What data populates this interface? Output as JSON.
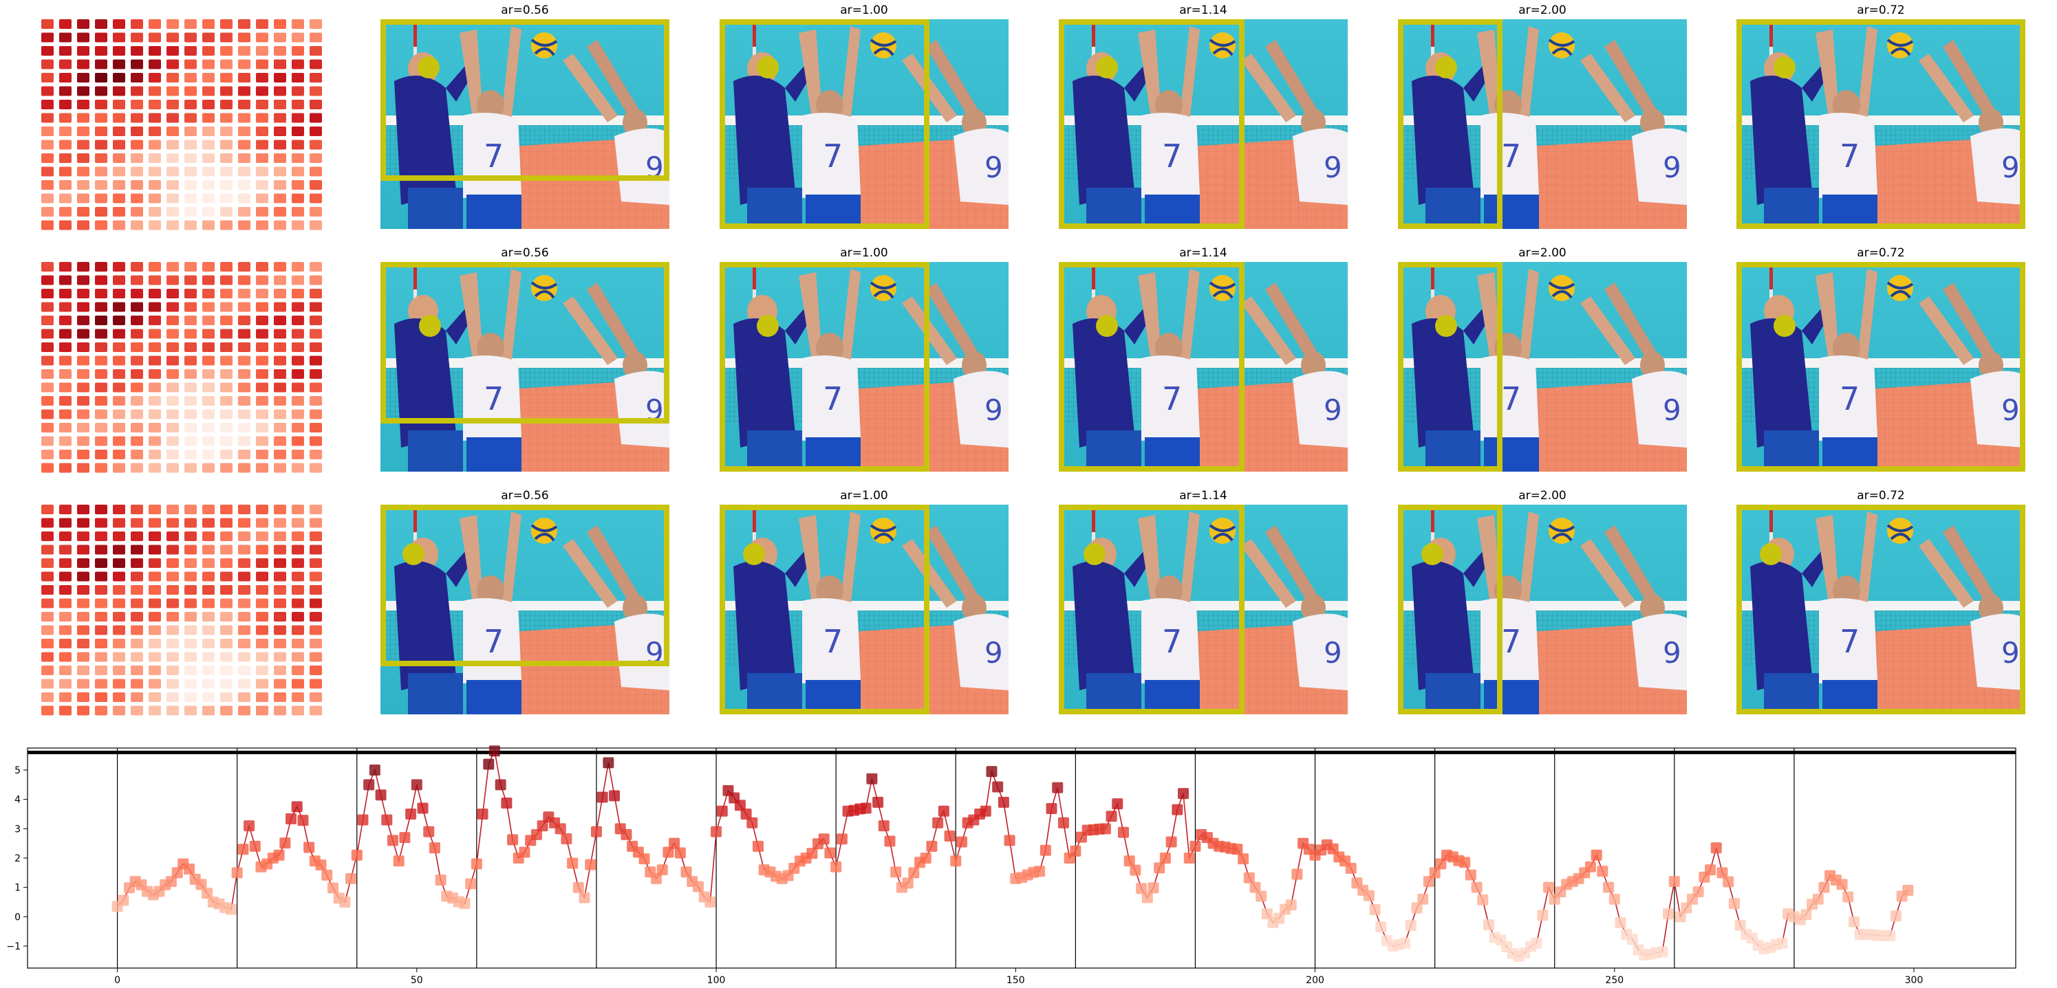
{
  "chart_data": [
    {
      "type": "heatmap",
      "description_of_panels": "rows",
      "rows": 3,
      "grid": [
        16,
        16
      ]
    },
    {
      "type": "image-grid",
      "rows": 3,
      "panel_titles": [
        "ar=0.56",
        "ar=1.00",
        "ar=1.14",
        "ar=2.00",
        "ar=0.72"
      ],
      "crop_box_color": "#c8c40e",
      "marker_color": "#c8c40e"
    },
    {
      "type": "line",
      "title": "",
      "xlabel": "",
      "ylabel": "",
      "xlim": [
        -15,
        317
      ],
      "ylim": [
        -1.75,
        5.75
      ],
      "xticks": [
        0,
        50,
        100,
        150,
        200,
        250,
        300
      ],
      "yticks": [
        -1,
        0,
        1,
        2,
        3,
        4,
        5
      ],
      "vlines": [
        0,
        20,
        40,
        60,
        80,
        100,
        120,
        140,
        160,
        180,
        200,
        220,
        240,
        260,
        280
      ],
      "hline": 5.6,
      "line_color": "#c0202a",
      "keypoints": [
        [
          0,
          0.35
        ],
        [
          3,
          1.2
        ],
        [
          6,
          0.75
        ],
        [
          9,
          1.2
        ],
        [
          10,
          1.5
        ],
        [
          11,
          1.8
        ],
        [
          14,
          1.1
        ],
        [
          16,
          0.5
        ],
        [
          19,
          0.25
        ],
        [
          20,
          1.5
        ],
        [
          22,
          3.1
        ],
        [
          24,
          1.7
        ],
        [
          27,
          2.1
        ],
        [
          30,
          3.75
        ],
        [
          33,
          1.9
        ],
        [
          38,
          0.5
        ],
        [
          40,
          2.1
        ],
        [
          42,
          4.5
        ],
        [
          43,
          5.0
        ],
        [
          45,
          3.3
        ],
        [
          47,
          1.9
        ],
        [
          49,
          3.5
        ],
        [
          50,
          4.5
        ],
        [
          52,
          2.9
        ],
        [
          55,
          0.7
        ],
        [
          58,
          0.45
        ],
        [
          60,
          1.8
        ],
        [
          62,
          5.2
        ],
        [
          63,
          5.65
        ],
        [
          64,
          4.5
        ],
        [
          67,
          2.0
        ],
        [
          70,
          2.8
        ],
        [
          72,
          3.4
        ],
        [
          74,
          3.0
        ],
        [
          78,
          0.65
        ],
        [
          80,
          2.9
        ],
        [
          82,
          5.25
        ],
        [
          84,
          3.0
        ],
        [
          87,
          2.2
        ],
        [
          90,
          1.3
        ],
        [
          93,
          2.5
        ],
        [
          96,
          1.2
        ],
        [
          99,
          0.5
        ],
        [
          100,
          2.9
        ],
        [
          102,
          4.3
        ],
        [
          104,
          3.8
        ],
        [
          106,
          3.2
        ],
        [
          108,
          1.6
        ],
        [
          111,
          1.3
        ],
        [
          115,
          2.0
        ],
        [
          118,
          2.65
        ],
        [
          120,
          1.7
        ],
        [
          122,
          3.6
        ],
        [
          125,
          3.7
        ],
        [
          126,
          4.7
        ],
        [
          128,
          3.1
        ],
        [
          131,
          1.0
        ],
        [
          135,
          2.0
        ],
        [
          138,
          3.6
        ],
        [
          140,
          1.9
        ],
        [
          142,
          3.2
        ],
        [
          145,
          3.6
        ],
        [
          146,
          4.95
        ],
        [
          148,
          3.9
        ],
        [
          150,
          1.3
        ],
        [
          154,
          1.55
        ],
        [
          157,
          4.4
        ],
        [
          159,
          2.0
        ],
        [
          162,
          2.95
        ],
        [
          165,
          3.0
        ],
        [
          167,
          3.85
        ],
        [
          169,
          1.9
        ],
        [
          172,
          0.65
        ],
        [
          175,
          2.0
        ],
        [
          178,
          4.2
        ],
        [
          179,
          2.0
        ],
        [
          181,
          2.8
        ],
        [
          184,
          2.4
        ],
        [
          187,
          2.3
        ],
        [
          190,
          1.0
        ],
        [
          193,
          -0.2
        ],
        [
          196,
          0.4
        ],
        [
          198,
          2.5
        ],
        [
          200,
          2.1
        ],
        [
          202,
          2.45
        ],
        [
          205,
          1.9
        ],
        [
          208,
          0.9
        ],
        [
          213,
          -1.0
        ],
        [
          215,
          -0.9
        ],
        [
          217,
          0.3
        ],
        [
          220,
          1.5
        ],
        [
          222,
          2.1
        ],
        [
          225,
          1.85
        ],
        [
          227,
          1.0
        ],
        [
          230,
          -0.7
        ],
        [
          234,
          -1.35
        ],
        [
          237,
          -0.9
        ],
        [
          239,
          1.0
        ],
        [
          240,
          0.6
        ],
        [
          242,
          1.1
        ],
        [
          244,
          1.3
        ],
        [
          246,
          1.7
        ],
        [
          247,
          2.1
        ],
        [
          249,
          1.0
        ],
        [
          252,
          -0.6
        ],
        [
          255,
          -1.3
        ],
        [
          258,
          -1.2
        ],
        [
          259,
          0.1
        ],
        [
          260,
          1.2
        ],
        [
          261,
          0.0
        ],
        [
          263,
          0.6
        ],
        [
          266,
          1.6
        ],
        [
          267,
          2.35
        ],
        [
          268,
          1.5
        ],
        [
          272,
          -0.6
        ],
        [
          275,
          -1.1
        ],
        [
          278,
          -0.9
        ],
        [
          279,
          0.1
        ],
        [
          281,
          -0.1
        ],
        [
          284,
          0.6
        ],
        [
          286,
          1.4
        ],
        [
          288,
          1.1
        ],
        [
          291,
          -0.6
        ],
        [
          296,
          -0.65
        ],
        [
          298,
          0.7
        ],
        [
          299,
          0.9
        ]
      ]
    }
  ]
}
